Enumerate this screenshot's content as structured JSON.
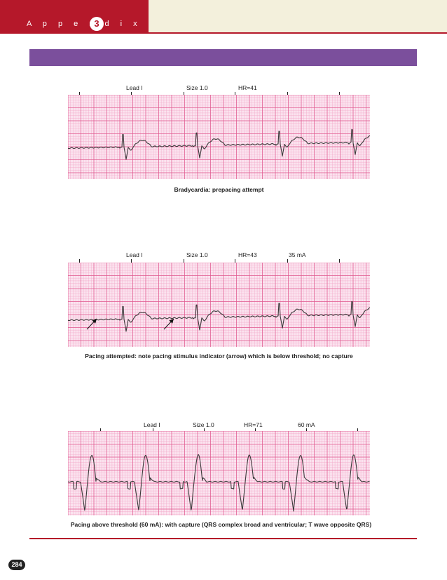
{
  "header": {
    "appendix_label": "A p p e n d i x",
    "appendix_number": "3"
  },
  "strips": [
    {
      "lead": "Lead I",
      "size": "Size 1.0",
      "hr": "HR=41",
      "ma": "",
      "caption": "Bradycardia: prepacing attempt"
    },
    {
      "lead": "Lead I",
      "size": "Size 1.0",
      "hr": "HR=43",
      "ma": "35 mA",
      "caption": "Pacing attempted: note pacing stimulus indicator (arrow) which is below threshold; no capture"
    },
    {
      "lead": "Lead I",
      "size": "Size 1.0",
      "hr": "HR=71",
      "ma": "60 mA",
      "caption": "Pacing above threshold (60 mA): with capture (QRS complex broad and ventricular; T wave opposite QRS)"
    }
  ],
  "footer": {
    "page_number": "284"
  },
  "colors": {
    "header_red": "#b5182a",
    "header_band": "#f3f0dc",
    "section_bar": "#7b4f9c",
    "ecg_grid_bg": "#fbe3ef",
    "ecg_grid_minor": "#f3a7c6",
    "ecg_grid_major": "#e0588f",
    "ecg_trace": "#3a3a3a"
  }
}
